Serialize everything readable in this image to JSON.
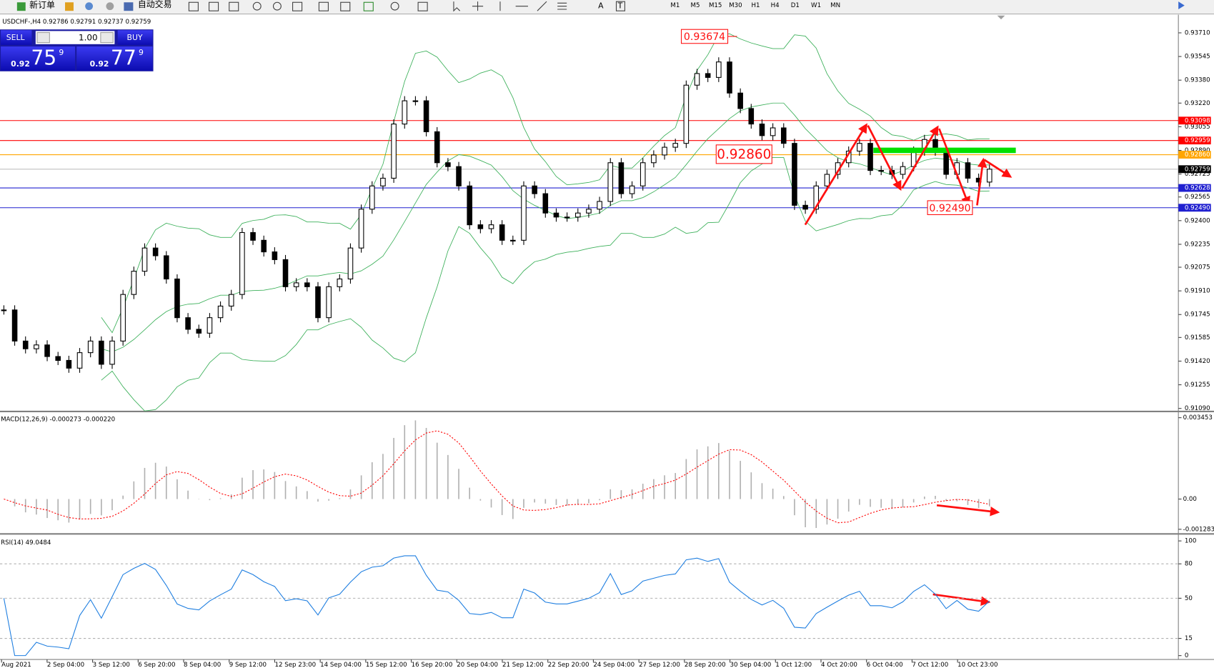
{
  "toolbar": {
    "new_order": "新订单",
    "auto_trading": "自动交易",
    "tools": [
      "A",
      "T"
    ],
    "timeframes": [
      "M1",
      "M5",
      "M15",
      "M30",
      "H1",
      "H4",
      "D1",
      "W1",
      "MN"
    ]
  },
  "chart": {
    "header": "USDCHF-,H4  0.92786 0.92791 0.92737 0.92759",
    "trade_panel": {
      "sell": "SELL",
      "buy": "BUY",
      "lot": "1.00",
      "sell_price": {
        "big": "0.92",
        "main": "75",
        "sup": "9"
      },
      "buy_price": {
        "big": "0.92",
        "main": "77",
        "sup": "9"
      }
    },
    "price": {
      "ylim": [
        0.91074,
        0.93831
      ],
      "yticks": [
        {
          "value": 0.9371,
          "label": "0.93710"
        },
        0.93545,
        {
          "value": 0.9338,
          "label": "0.93380"
        },
        {
          "value": 0.9322,
          "label": "0.93220"
        },
        0.93055,
        {
          "value": 0.9289,
          "label": "0.92890"
        },
        0.92725,
        0.92565,
        {
          "value": 0.924,
          "label": "0.92400"
        },
        0.92235,
        0.92075,
        {
          "value": 0.9191,
          "label": "0.91910"
        },
        0.91745,
        0.91585,
        {
          "value": 0.9142,
          "label": "0.91420"
        },
        0.91255,
        {
          "value": 0.9109,
          "label": "0.91090"
        }
      ],
      "close": [
        0.91777,
        0.9156,
        0.91506,
        0.91533,
        0.91452,
        0.91425,
        0.91371,
        0.91479,
        0.9156,
        0.91398,
        0.9156,
        0.91885,
        0.92047,
        0.92209,
        0.92155,
        0.91993,
        0.91723,
        0.91642,
        0.91615,
        0.91723,
        0.91804,
        0.91885,
        0.92317,
        0.92263,
        0.92182,
        0.92128,
        0.91939,
        0.91966,
        0.91939,
        0.91723,
        0.91939,
        0.91993,
        0.92209,
        0.9248,
        0.92642,
        0.92696,
        0.93074,
        0.93236,
        0.93236,
        0.9302,
        0.92804,
        0.92777,
        0.92642,
        0.92371,
        0.92344,
        0.92371,
        0.92263,
        0.92263,
        0.92642,
        0.92588,
        0.92453,
        0.92425,
        0.92425,
        0.92453,
        0.9248,
        0.92534,
        0.92804,
        0.92588,
        0.92642,
        0.92804,
        0.92858,
        0.92912,
        0.92939,
        0.93345,
        0.93426,
        0.93399,
        0.93507,
        0.9329,
        0.93182,
        0.93074,
        0.92993,
        0.93047,
        0.92939,
        0.92507,
        0.9248,
        0.92642,
        0.92723,
        0.92804,
        0.92885,
        0.92939,
        0.9275,
        0.9275,
        0.92723,
        0.92777,
        0.92885,
        0.92966,
        0.92885,
        0.92723,
        0.92804,
        0.92696,
        0.92669,
        0.92759
      ]
    },
    "levels": [
      {
        "price": 0.93098,
        "color": "#ff0000",
        "box": "#ff0000"
      },
      {
        "price": 0.92959,
        "color": "#ff0000",
        "box": "#ff0000"
      },
      {
        "price": {
          "value": 0.9286,
          "label": "0.92860"
        },
        "color": "#ffa500",
        "box": "#ffa500"
      },
      {
        "price": 0.92759,
        "color": "#c0c0c0",
        "box": "#000000"
      },
      {
        "price": 0.92628,
        "color": "#2020d0",
        "box": "#2020d0"
      },
      {
        "price": {
          "value": 0.9249,
          "label": "0.92490"
        },
        "color": "#2020d0",
        "box": "#2020d0"
      }
    ],
    "annotations": [
      "0.93674",
      "0.92860",
      "0.92490"
    ],
    "dates": [
      "Aug 2021",
      "2 Sep 04:00",
      "3 Sep 12:00",
      "6 Sep 20:00",
      "8 Sep 04:00",
      "9 Sep 12:00",
      "12 Sep 23:00",
      "14 Sep 04:00",
      "15 Sep 12:00",
      "16 Sep 20:00",
      "20 Sep 04:00",
      "21 Sep 12:00",
      "22 Sep 20:00",
      "24 Sep 04:00",
      "27 Sep 12:00",
      "28 Sep 20:00",
      "30 Sep 04:00",
      "1 Oct 12:00",
      "4 Oct 20:00",
      "6 Oct 04:00",
      "7 Oct 12:00",
      "10 Oct 23:00"
    ]
  },
  "macd": {
    "label": "MACD(12,26,9) -0.000273 -0.000220",
    "ylim": [
      -0.001283,
      0.003453
    ],
    "yticks": [
      0.003453,
      {
        "value": 0,
        "label": "0.00"
      },
      -0.001283
    ]
  },
  "rsi": {
    "label": "RSI(14) 49.0484",
    "ylim": [
      0,
      100
    ],
    "yticks": [
      100,
      80,
      50,
      15,
      0
    ]
  }
}
